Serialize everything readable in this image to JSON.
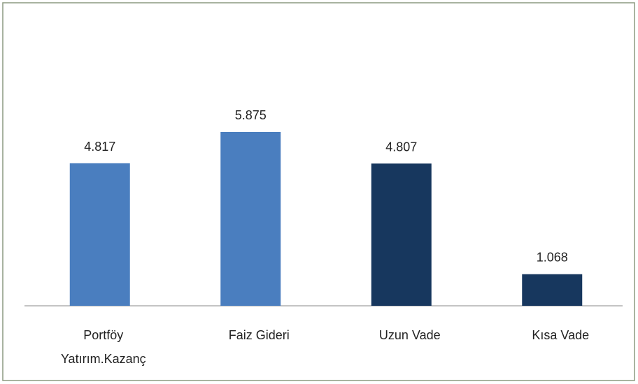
{
  "chart_data": {
    "type": "bar",
    "categories": [
      "Portföy Yatırım.Kazanç",
      "Faiz Gideri",
      "Uzun Vade",
      "Kısa Vade"
    ],
    "values": [
      4.817,
      5.875,
      4.807,
      1.068
    ],
    "colors": [
      "#4a7ebf",
      "#4a7ebf",
      "#17375e",
      "#17375e"
    ]
  }
}
